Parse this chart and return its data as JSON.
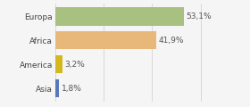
{
  "categories": [
    "Europa",
    "Africa",
    "America",
    "Asia"
  ],
  "values": [
    53.1,
    41.9,
    3.2,
    1.8
  ],
  "labels": [
    "53,1%",
    "41,9%",
    "3,2%",
    "1,8%"
  ],
  "colors": [
    "#a8c080",
    "#e8b87a",
    "#d4b820",
    "#5878b8"
  ],
  "background_color": "#f5f5f5",
  "xlim": [
    0,
    68
  ],
  "bar_height": 0.75,
  "label_fontsize": 6.5,
  "category_fontsize": 6.5
}
